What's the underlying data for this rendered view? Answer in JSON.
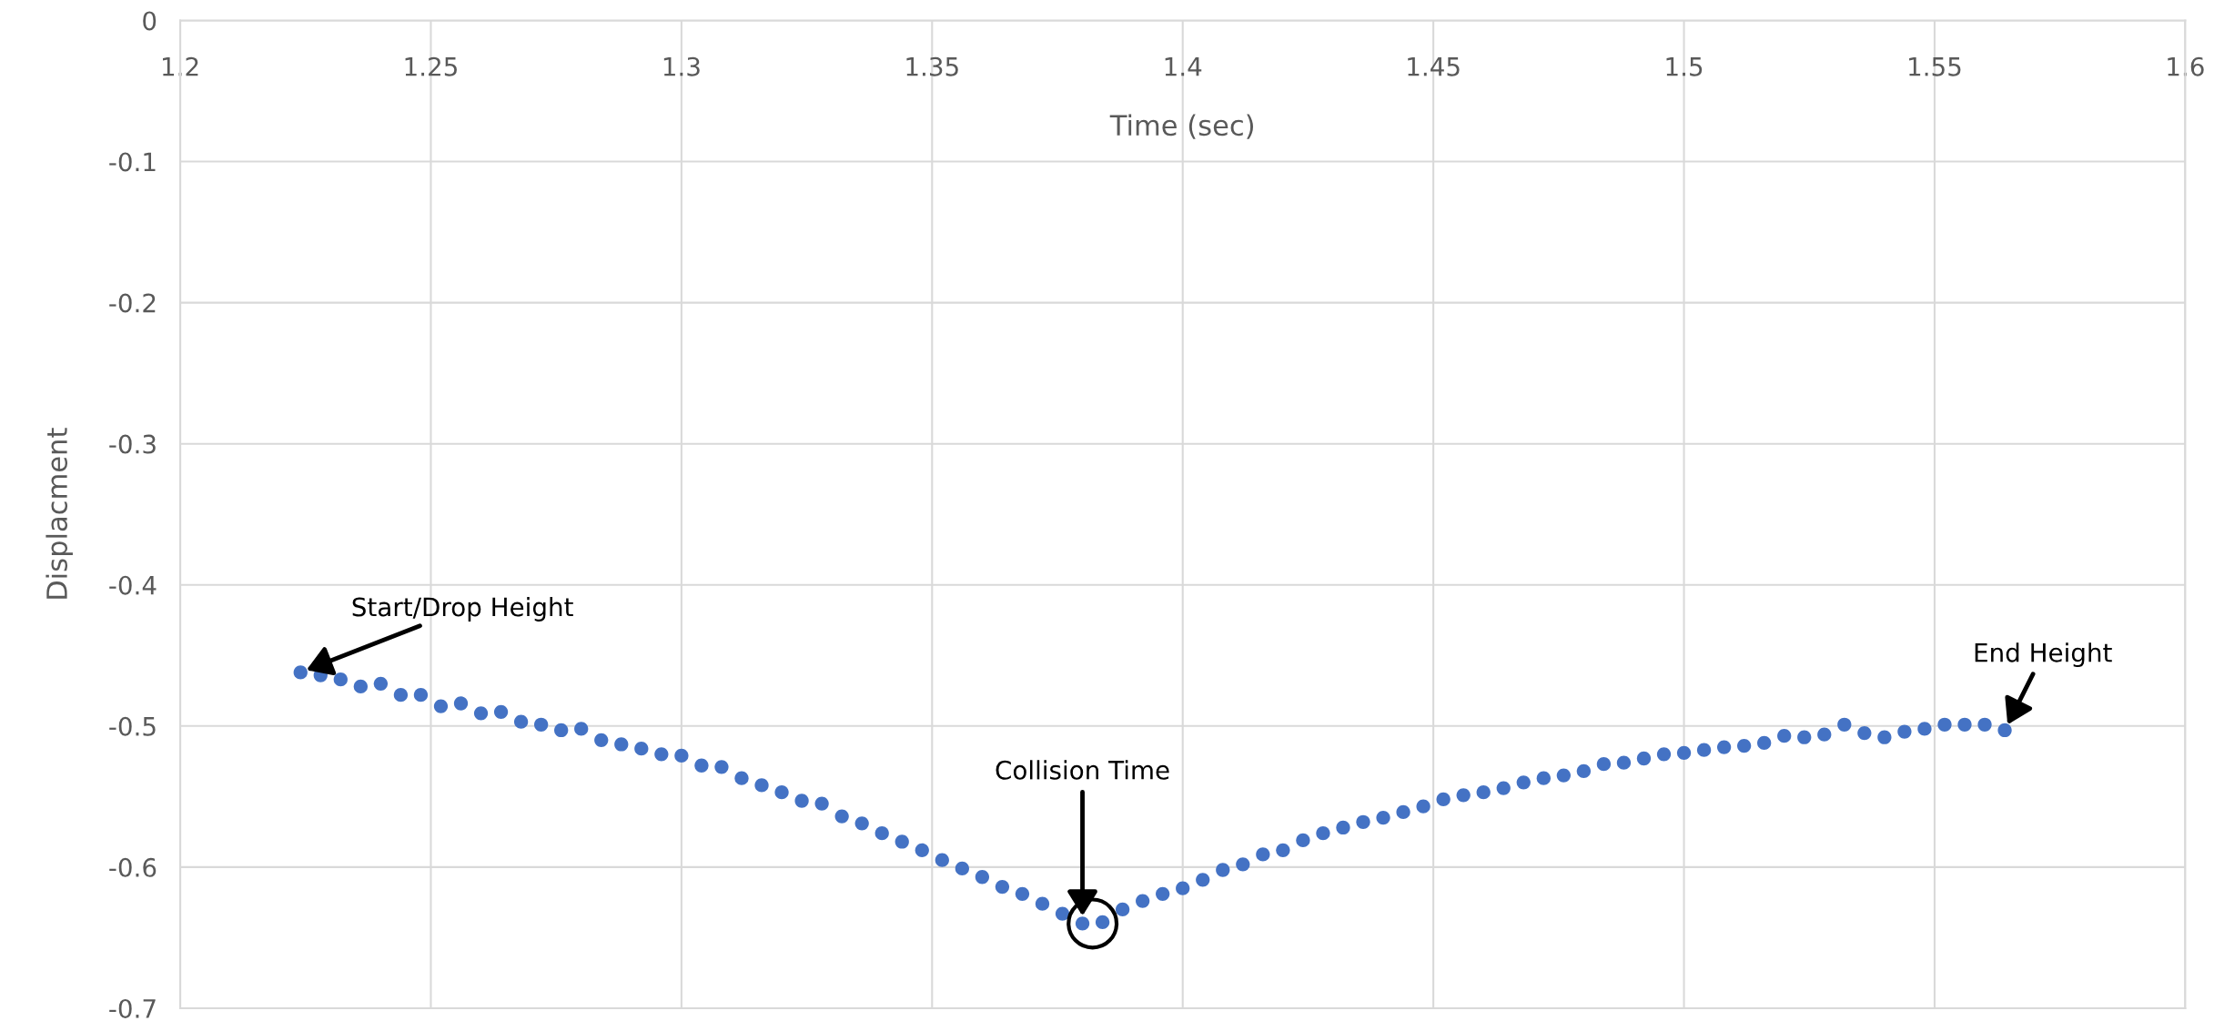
{
  "chart_data": {
    "type": "scatter",
    "xlabel": "Time (sec)",
    "ylabel": "Displacment",
    "x": [
      1.224,
      1.228,
      1.232,
      1.236,
      1.24,
      1.244,
      1.248,
      1.252,
      1.256,
      1.26,
      1.264,
      1.268,
      1.272,
      1.276,
      1.28,
      1.284,
      1.288,
      1.292,
      1.296,
      1.3,
      1.304,
      1.308,
      1.312,
      1.316,
      1.32,
      1.324,
      1.328,
      1.332,
      1.336,
      1.34,
      1.344,
      1.348,
      1.352,
      1.356,
      1.36,
      1.364,
      1.368,
      1.372,
      1.376,
      1.38,
      1.384,
      1.388,
      1.392,
      1.396,
      1.4,
      1.404,
      1.408,
      1.412,
      1.416,
      1.42,
      1.424,
      1.428,
      1.432,
      1.436,
      1.44,
      1.444,
      1.448,
      1.452,
      1.456,
      1.46,
      1.464,
      1.468,
      1.472,
      1.476,
      1.48,
      1.484,
      1.488,
      1.492,
      1.496,
      1.5,
      1.504,
      1.508,
      1.512,
      1.516,
      1.52,
      1.524,
      1.528,
      1.532,
      1.536,
      1.54,
      1.544,
      1.548,
      1.552,
      1.556,
      1.56,
      1.564
    ],
    "values": [
      -0.462,
      -0.464,
      -0.467,
      -0.472,
      -0.47,
      -0.478,
      -0.478,
      -0.486,
      -0.484,
      -0.491,
      -0.49,
      -0.497,
      -0.499,
      -0.503,
      -0.502,
      -0.51,
      -0.513,
      -0.516,
      -0.52,
      -0.521,
      -0.528,
      -0.529,
      -0.537,
      -0.542,
      -0.547,
      -0.553,
      -0.555,
      -0.564,
      -0.569,
      -0.576,
      -0.582,
      -0.588,
      -0.595,
      -0.601,
      -0.607,
      -0.614,
      -0.619,
      -0.626,
      -0.633,
      -0.64,
      -0.639,
      -0.63,
      -0.624,
      -0.619,
      -0.615,
      -0.609,
      -0.602,
      -0.598,
      -0.591,
      -0.588,
      -0.581,
      -0.576,
      -0.572,
      -0.568,
      -0.565,
      -0.561,
      -0.557,
      -0.552,
      -0.549,
      -0.547,
      -0.544,
      -0.54,
      -0.537,
      -0.535,
      -0.532,
      -0.527,
      -0.526,
      -0.523,
      -0.52,
      -0.519,
      -0.517,
      -0.515,
      -0.514,
      -0.512,
      -0.507,
      -0.508,
      -0.506,
      -0.499,
      -0.505,
      -0.508,
      -0.504,
      -0.502,
      -0.499,
      -0.499,
      -0.499,
      -0.503
    ],
    "color": "#4472c4",
    "marker": "circle",
    "xlim": [
      1.2,
      1.6
    ],
    "xticks": [
      1.2,
      1.25,
      1.3,
      1.35,
      1.4,
      1.45,
      1.5,
      1.55,
      1.6
    ],
    "ylim": [
      -0.7,
      0
    ],
    "yticks": [
      0,
      -0.1,
      -0.2,
      -0.3,
      -0.4,
      -0.5,
      -0.6,
      -0.7
    ],
    "grid": true,
    "legend": false,
    "annotations": [
      {
        "text": "Start/Drop Height",
        "x": 1.224,
        "y": -0.462
      },
      "Collision Time",
      {
        "text": "End Height",
        "x": 1.564,
        "y": -0.503
      }
    ]
  }
}
